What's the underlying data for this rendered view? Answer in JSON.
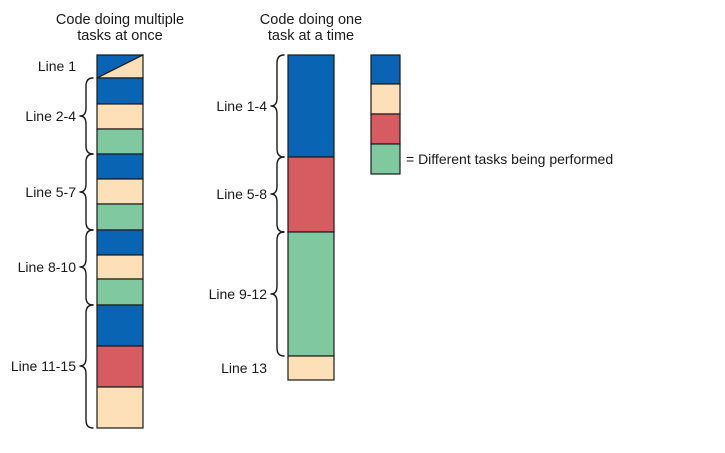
{
  "colors": {
    "blue": "#0a64b4",
    "peach": "#fde0b8",
    "red": "#d65c62",
    "green": "#80c8a0"
  },
  "left_column": {
    "title_line1": "Code doing multiple",
    "title_line2": "tasks at once",
    "groups": [
      {
        "label": "Line 1",
        "brace": false,
        "segments": [
          "blue",
          "peach"
        ],
        "split": "diagonal"
      },
      {
        "label": "Line 2-4",
        "brace": true,
        "segments": [
          "blue",
          "peach",
          "green"
        ]
      },
      {
        "label": "Line 5-7",
        "brace": true,
        "segments": [
          "blue",
          "peach",
          "green"
        ]
      },
      {
        "label": "Line 8-10",
        "brace": true,
        "segments": [
          "blue",
          "peach",
          "green"
        ]
      },
      {
        "label": "Line 11-15",
        "brace": true,
        "segments": [
          "blue",
          "red",
          "peach"
        ]
      }
    ]
  },
  "right_column": {
    "title_line1": "Code doing one",
    "title_line2": "task at a time",
    "groups": [
      {
        "label": "Line 1-4",
        "brace": true,
        "color": "blue"
      },
      {
        "label": "Line 5-8",
        "brace": true,
        "color": "red"
      },
      {
        "label": "Line 9-12",
        "brace": true,
        "color": "green"
      },
      {
        "label": "Line 13",
        "brace": false,
        "color": "peach"
      }
    ]
  },
  "legend": {
    "swatches": [
      "blue",
      "peach",
      "red",
      "green"
    ],
    "text": "= Different tasks being performed"
  }
}
